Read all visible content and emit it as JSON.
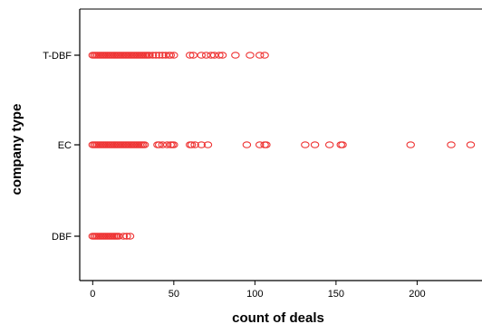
{
  "chart_data": {
    "type": "scatter",
    "title": "",
    "xlabel": "count of deals",
    "ylabel": "company type",
    "categories": [
      "DBF",
      "EC",
      "T-DBF"
    ],
    "xlim": [
      -8,
      240
    ],
    "x_ticks": [
      0,
      50,
      100,
      150,
      200
    ],
    "x_tick_labels": [
      "0",
      "50",
      "100",
      "150",
      "200"
    ],
    "grid": false,
    "legend": "none",
    "marker": "open-circle",
    "marker_color": "#ee3333",
    "series": [
      {
        "category": "T-DBF",
        "values": [
          0,
          1,
          2,
          3,
          4,
          5,
          6,
          7,
          8,
          9,
          10,
          11,
          12,
          13,
          14,
          15,
          16,
          17,
          18,
          19,
          20,
          21,
          22,
          23,
          24,
          25,
          26,
          27,
          28,
          29,
          30,
          31,
          32,
          33,
          34,
          35,
          37,
          39,
          41,
          43,
          45,
          47,
          48,
          50,
          60,
          62,
          67,
          70,
          73,
          75,
          78,
          80,
          88,
          97,
          103,
          106
        ]
      },
      {
        "category": "EC",
        "values": [
          0,
          1,
          2,
          3,
          4,
          5,
          6,
          7,
          8,
          9,
          10,
          11,
          12,
          13,
          14,
          15,
          16,
          17,
          18,
          19,
          20,
          21,
          22,
          23,
          24,
          25,
          26,
          27,
          28,
          29,
          30,
          31,
          32,
          40,
          41,
          43,
          46,
          48,
          49,
          50,
          60,
          61,
          63,
          67,
          71,
          95,
          103,
          106,
          107,
          131,
          137,
          146,
          153,
          154,
          196,
          221,
          233
        ]
      },
      {
        "category": "DBF",
        "values": [
          0,
          1,
          2,
          3,
          4,
          5,
          6,
          7,
          8,
          9,
          10,
          11,
          12,
          13,
          14,
          15,
          16,
          19,
          21,
          23
        ]
      }
    ]
  }
}
